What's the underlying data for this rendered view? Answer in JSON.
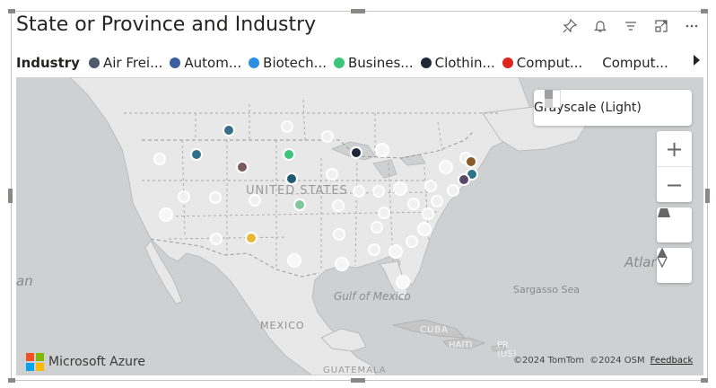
{
  "visual": {
    "title": "State or Province and Industry",
    "header_icons": [
      "pin-icon",
      "bell-icon",
      "filter-icon",
      "focus-mode-icon",
      "more-options-icon"
    ]
  },
  "legend": {
    "title": "Industry",
    "items": [
      {
        "label": "Air Frei...",
        "color": "#4e5a6b"
      },
      {
        "label": "Autom...",
        "color": "#3c5fa0"
      },
      {
        "label": "Biotech...",
        "color": "#2a8fe0"
      },
      {
        "label": "Busines...",
        "color": "#3cc47a"
      },
      {
        "label": "Clothin...",
        "color": "#1f2838"
      },
      {
        "label": "Comput...",
        "color": "#e0231c"
      }
    ],
    "overflow_label": "Comput...",
    "next_icon": "chevron-right-icon"
  },
  "map": {
    "style_picker_label": "Grayscale (Light)",
    "zoom_in_label": "+",
    "zoom_out_label": "−",
    "labels": {
      "country_us": "UNITED STATES",
      "country_mexico": "MEXICO",
      "gulf": "Gulf of Mexico",
      "cuba": "CUBA",
      "haiti": "HAITI",
      "pr": "PR",
      "pr_sub": "(US)",
      "guatemala": "GUATEMALA",
      "sargasso": "Sargasso Sea",
      "atlantic": "Atlan",
      "an": "an"
    },
    "brand": "Microsoft Azure",
    "attribution": [
      "©2024 TomTom",
      "©2024 OSM"
    ],
    "feedback": "Feedback",
    "colors": {
      "water": "#cfd0d1",
      "land": "#e8e8e8",
      "border": "#9a9a9a"
    }
  }
}
